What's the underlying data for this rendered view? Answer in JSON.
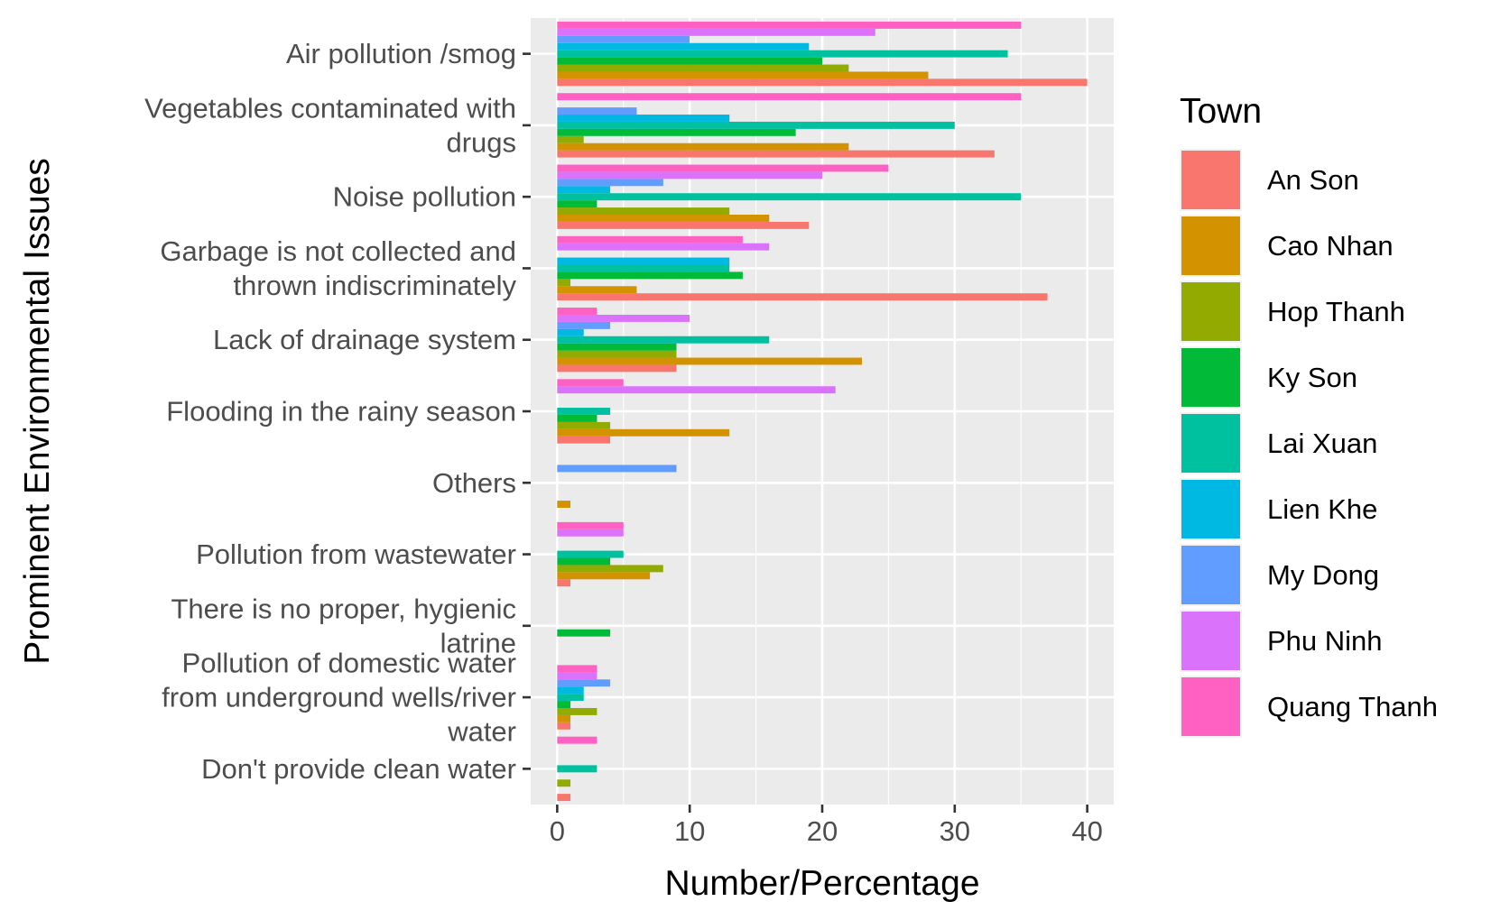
{
  "chart_data": {
    "type": "bar",
    "orientation": "horizontal",
    "xlabel": "Number/Percentage",
    "ylabel": "Prominent Environmental Issues",
    "xlim": [
      -2,
      42
    ],
    "xticks": [
      0,
      10,
      20,
      30,
      40
    ],
    "grid": true,
    "legend_position": "right",
    "legend_title": "Town",
    "categories": [
      [
        "Air pollution /smog"
      ],
      [
        "Vegetables contaminated with",
        "drugs"
      ],
      [
        "Noise pollution"
      ],
      [
        "Garbage is not collected and",
        "thrown indiscriminately"
      ],
      [
        "Lack of drainage system"
      ],
      [
        "Flooding in the rainy season"
      ],
      [
        "Others"
      ],
      [
        "Pollution from wastewater"
      ],
      [
        "There is no proper, hygienic",
        "latrine"
      ],
      [
        "Pollution of domestic water",
        "from underground wells/river",
        "water"
      ],
      [
        "Don't provide clean water"
      ]
    ],
    "series": [
      {
        "name": "An Son",
        "color": "#F8766D",
        "values": [
          40,
          33,
          19,
          37,
          9,
          4,
          null,
          1,
          null,
          1,
          1
        ]
      },
      {
        "name": "Cao Nhan",
        "color": "#D39200",
        "values": [
          28,
          22,
          16,
          6,
          23,
          13,
          1,
          7,
          null,
          1,
          null
        ]
      },
      {
        "name": "Hop Thanh",
        "color": "#93AA00",
        "values": [
          22,
          2,
          13,
          1,
          9,
          4,
          null,
          8,
          null,
          3,
          1
        ]
      },
      {
        "name": "Ky Son",
        "color": "#00BA38",
        "values": [
          20,
          18,
          3,
          14,
          9,
          3,
          null,
          4,
          4,
          1,
          null
        ]
      },
      {
        "name": "Lai Xuan",
        "color": "#00C19F",
        "values": [
          34,
          30,
          35,
          13,
          16,
          4,
          null,
          5,
          null,
          2,
          3
        ]
      },
      {
        "name": "Lien Khe",
        "color": "#00B9E3",
        "values": [
          19,
          13,
          4,
          13,
          2,
          null,
          null,
          null,
          null,
          2,
          null
        ]
      },
      {
        "name": "My Dong",
        "color": "#619CFF",
        "values": [
          10,
          6,
          8,
          null,
          4,
          null,
          9,
          null,
          null,
          4,
          null
        ]
      },
      {
        "name": "Phu Ninh",
        "color": "#DB72FB",
        "values": [
          24,
          null,
          20,
          16,
          10,
          21,
          null,
          5,
          null,
          3,
          null
        ]
      },
      {
        "name": "Quang Thanh",
        "color": "#FF61C3",
        "values": [
          35,
          35,
          25,
          14,
          3,
          5,
          null,
          5,
          null,
          3,
          3
        ]
      }
    ]
  }
}
